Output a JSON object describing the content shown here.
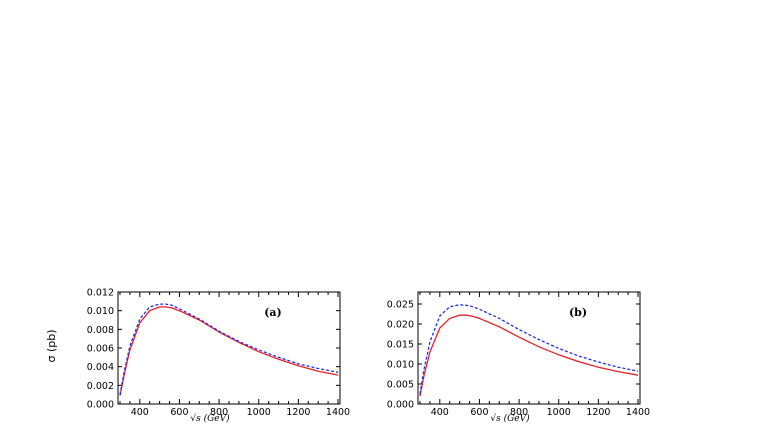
{
  "ylabel": "σ (pb)",
  "chart_data": [
    {
      "type": "line",
      "panel_label": "(a)",
      "xlabel": "√s (GeV)",
      "xlim": [
        290,
        1410
      ],
      "ylim": [
        0,
        0.012
      ],
      "xticks": [
        400,
        600,
        800,
        1000,
        1200,
        1400
      ],
      "yticks": [
        0.0,
        0.002,
        0.004,
        0.006,
        0.008,
        0.01,
        0.012
      ],
      "ytick_labels": [
        "0.000",
        "0.002",
        "0.004",
        "0.006",
        "0.008",
        "0.010",
        "0.012"
      ],
      "series": [
        {
          "style": "solid",
          "color": "#e8202a",
          "x": [
            300,
            320,
            350,
            400,
            450,
            500,
            530,
            560,
            600,
            700,
            800,
            900,
            1000,
            1100,
            1200,
            1300,
            1400
          ],
          "y": [
            0.0009,
            0.003,
            0.0058,
            0.0087,
            0.01,
            0.0104,
            0.0104,
            0.0103,
            0.01,
            0.009,
            0.0077,
            0.0066,
            0.0056,
            0.0048,
            0.0041,
            0.0035,
            0.0031
          ]
        },
        {
          "style": "dashed",
          "color": "#2030e0",
          "x": [
            300,
            320,
            350,
            400,
            450,
            500,
            530,
            560,
            600,
            700,
            800,
            900,
            1000,
            1100,
            1200,
            1300,
            1400
          ],
          "y": [
            0.001,
            0.0033,
            0.0062,
            0.0091,
            0.0104,
            0.0107,
            0.0107,
            0.0106,
            0.0102,
            0.0091,
            0.0078,
            0.0067,
            0.0058,
            0.005,
            0.0043,
            0.0038,
            0.0034
          ]
        }
      ]
    },
    {
      "type": "line",
      "panel_label": "(b)",
      "xlabel": "√s (GeV)",
      "xlim": [
        290,
        1410
      ],
      "ylim": [
        0,
        0.028
      ],
      "xticks": [
        400,
        600,
        800,
        1000,
        1200,
        1400
      ],
      "yticks": [
        0.0,
        0.005,
        0.01,
        0.015,
        0.02,
        0.025
      ],
      "ytick_labels": [
        "0.000",
        "0.005",
        "0.010",
        "0.015",
        "0.020",
        "0.025"
      ],
      "series": [
        {
          "style": "solid",
          "color": "#e8202a",
          "x": [
            300,
            320,
            350,
            400,
            450,
            500,
            530,
            560,
            600,
            700,
            800,
            900,
            1000,
            1100,
            1200,
            1300,
            1400
          ],
          "y": [
            0.002,
            0.007,
            0.013,
            0.019,
            0.0214,
            0.0222,
            0.0222,
            0.022,
            0.0214,
            0.0193,
            0.0167,
            0.0143,
            0.0123,
            0.0106,
            0.0092,
            0.0081,
            0.0072
          ]
        },
        {
          "style": "dashed",
          "color": "#2030e0",
          "x": [
            300,
            320,
            350,
            400,
            450,
            500,
            530,
            560,
            600,
            700,
            800,
            900,
            1000,
            1100,
            1200,
            1300,
            1400
          ],
          "y": [
            0.0025,
            0.0085,
            0.0155,
            0.022,
            0.0243,
            0.0248,
            0.0247,
            0.0244,
            0.0237,
            0.0214,
            0.0186,
            0.0161,
            0.0139,
            0.012,
            0.0105,
            0.0092,
            0.0082
          ]
        }
      ]
    }
  ]
}
